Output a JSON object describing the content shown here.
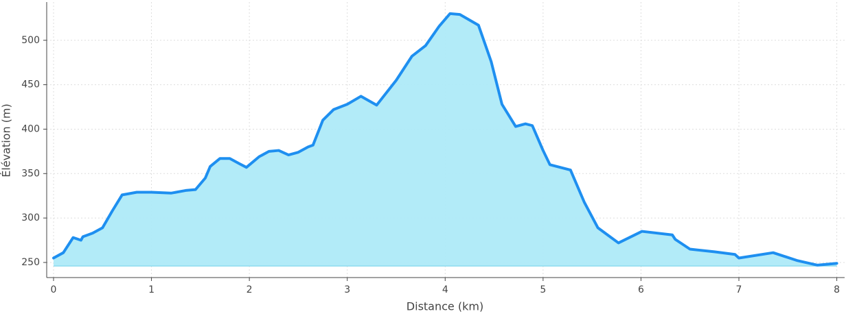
{
  "chart_data": {
    "type": "area",
    "x_label": "Distance (km)",
    "y_label": "Élévation (m)",
    "x": [
      0,
      0.1,
      0.2,
      0.28,
      0.3,
      0.4,
      0.5,
      0.6,
      0.7,
      0.75,
      0.85,
      1.0,
      1.2,
      1.35,
      1.45,
      1.55,
      1.6,
      1.7,
      1.8,
      1.9,
      1.97,
      2.1,
      2.2,
      2.3,
      2.4,
      2.5,
      2.6,
      2.65,
      2.75,
      2.86,
      3.0,
      3.14,
      3.3,
      3.5,
      3.66,
      3.8,
      3.94,
      4.05,
      4.15,
      4.34,
      4.47,
      4.58,
      4.72,
      4.82,
      4.89,
      5.0,
      5.07,
      5.28,
      5.42,
      5.56,
      5.77,
      6.01,
      6.32,
      6.35,
      6.5,
      6.75,
      6.96,
      7.0,
      7.35,
      7.6,
      7.8,
      8.0
    ],
    "values": [
      255,
      261,
      278,
      275,
      279,
      283,
      289,
      308,
      326,
      327,
      329,
      329,
      328,
      331,
      332,
      345,
      358,
      367,
      367,
      361,
      357,
      369,
      375,
      376,
      371,
      374,
      380,
      382,
      410,
      422,
      428,
      437,
      427,
      455,
      482,
      494,
      516,
      530,
      529,
      517,
      476,
      428,
      403,
      406,
      404,
      376,
      360,
      354,
      318,
      289,
      272,
      285,
      281,
      276,
      265,
      262,
      259,
      255,
      261,
      252,
      247,
      249
    ],
    "area_baseline": 246,
    "color": "#1e8ff0",
    "fill_color": "#aeeaf8",
    "xlim": [
      -0.07,
      8.08
    ],
    "ylim": [
      233,
      543
    ],
    "xticks": [
      0,
      1,
      2,
      3,
      4,
      5,
      6,
      7,
      8
    ],
    "yticks": [
      250,
      300,
      350,
      400,
      450,
      500
    ],
    "grid": true
  }
}
